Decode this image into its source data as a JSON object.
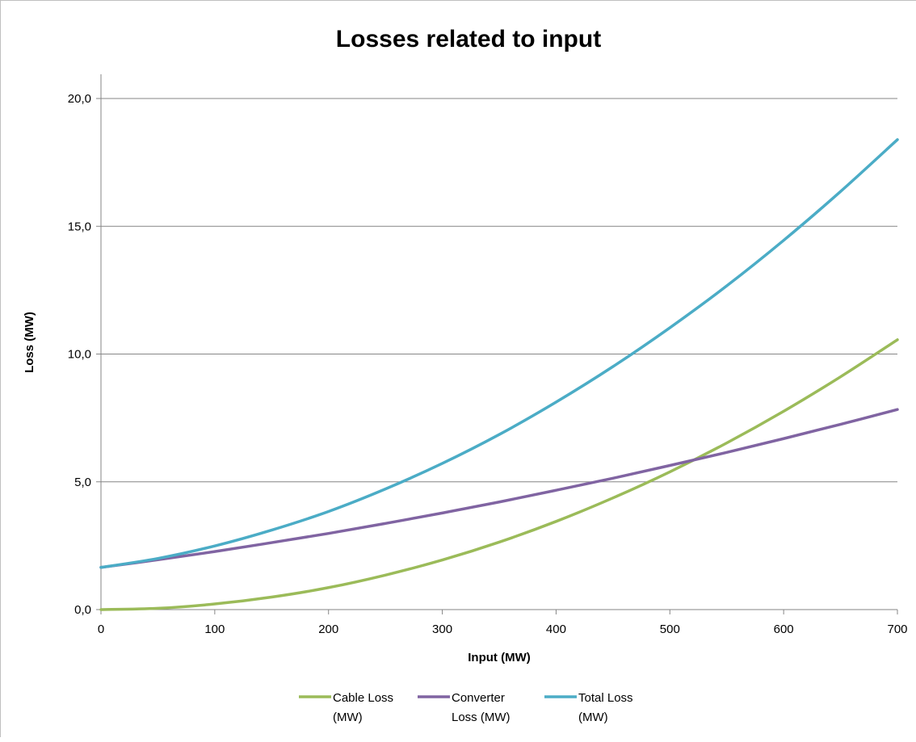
{
  "chart_data": {
    "type": "line",
    "title": "Losses related to input",
    "xlabel": "Input (MW)",
    "ylabel": "Loss (MW)",
    "xlim": [
      0,
      700
    ],
    "ylim": [
      0,
      20
    ],
    "xticks": [
      "0",
      "100",
      "200",
      "300",
      "400",
      "500",
      "600",
      "700"
    ],
    "yticks": [
      "0,0",
      "5,0",
      "10,0",
      "15,0",
      "20,0"
    ],
    "grid": "horizontal",
    "legend_position": "bottom",
    "x": [
      0,
      50,
      100,
      150,
      200,
      250,
      300,
      350,
      400,
      450,
      500,
      550,
      600,
      650,
      700
    ],
    "series": [
      {
        "name": "Cable Loss (MW)",
        "color": "#9bbb59",
        "values": [
          0.0,
          0.05,
          0.22,
          0.49,
          0.86,
          1.35,
          1.94,
          2.64,
          3.45,
          4.37,
          5.39,
          6.52,
          7.76,
          9.11,
          10.56
        ]
      },
      {
        "name": "Converter Loss (MW)",
        "color": "#8064a2",
        "values": [
          1.65,
          1.95,
          2.27,
          2.62,
          2.98,
          3.37,
          3.78,
          4.21,
          4.67,
          5.14,
          5.64,
          6.15,
          6.69,
          7.25,
          7.83
        ]
      },
      {
        "name": "Total Loss (MW)",
        "color": "#4bacc6",
        "values": [
          1.65,
          2.0,
          2.49,
          3.11,
          3.84,
          4.72,
          5.72,
          6.85,
          8.12,
          9.51,
          11.03,
          12.67,
          14.45,
          16.36,
          18.39
        ]
      }
    ],
    "legend_lines": [
      [
        "Cable Loss",
        "(MW)"
      ],
      [
        "Converter",
        "Loss (MW)"
      ],
      [
        "Total Loss",
        "(MW)"
      ]
    ]
  }
}
